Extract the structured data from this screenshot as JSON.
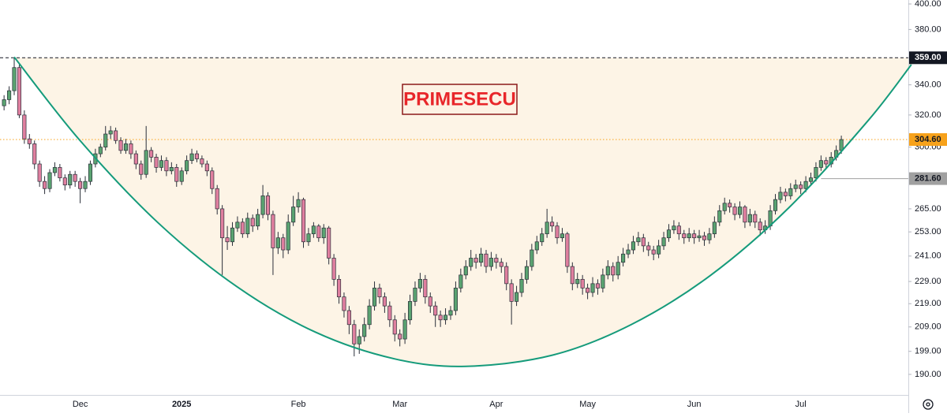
{
  "chart_data": {
    "type": "candlestick",
    "annotation": {
      "text": "PRIMESECU",
      "color": "#e8262a"
    },
    "log_scale": true,
    "ylim": [
      182.6,
      403.2
    ],
    "yticks": [
      {
        "value": 400,
        "label": "400.00"
      },
      {
        "value": 380,
        "label": "380.00"
      },
      {
        "value": 340,
        "label": "340.00"
      },
      {
        "value": 320,
        "label": "320.00"
      },
      {
        "value": 300,
        "label": "300.00"
      },
      {
        "value": 265,
        "label": "265.00"
      },
      {
        "value": 253,
        "label": "253.00"
      },
      {
        "value": 241,
        "label": "241.00"
      },
      {
        "value": 229,
        "label": "229.00"
      },
      {
        "value": 219,
        "label": "219.00"
      },
      {
        "value": 209,
        "label": "209.00"
      },
      {
        "value": 199,
        "label": "199.00"
      },
      {
        "value": 190,
        "label": "190.00"
      }
    ],
    "categories": [
      null,
      null,
      null,
      null,
      null,
      null,
      null,
      null,
      null,
      null,
      null,
      null,
      null,
      null,
      null,
      "Dec",
      null,
      null,
      null,
      null,
      null,
      null,
      null,
      null,
      null,
      null,
      null,
      null,
      null,
      null,
      null,
      null,
      null,
      null,
      null,
      "2025",
      null,
      null,
      null,
      null,
      null,
      null,
      null,
      null,
      null,
      null,
      null,
      null,
      null,
      null,
      null,
      null,
      null,
      null,
      null,
      null,
      null,
      null,
      "Feb",
      null,
      null,
      null,
      null,
      null,
      null,
      null,
      null,
      null,
      null,
      null,
      null,
      null,
      null,
      null,
      null,
      null,
      null,
      null,
      "Mar",
      null,
      null,
      null,
      null,
      null,
      null,
      null,
      null,
      null,
      null,
      null,
      null,
      null,
      null,
      null,
      null,
      null,
      null,
      "Apr",
      null,
      null,
      null,
      null,
      null,
      null,
      null,
      null,
      null,
      null,
      null,
      null,
      null,
      null,
      null,
      null,
      null,
      "May",
      null,
      null,
      null,
      null,
      null,
      null,
      null,
      null,
      null,
      null,
      null,
      null,
      null,
      null,
      null,
      null,
      null,
      null,
      null,
      null,
      "Jun",
      null,
      null,
      null,
      null,
      null,
      null,
      null,
      null,
      null,
      null,
      null,
      null,
      null,
      null,
      null,
      null,
      null,
      null,
      null,
      null,
      "Jul",
      null,
      null,
      null,
      null,
      null,
      null,
      null,
      null
    ],
    "open": [
      326,
      330,
      336,
      352,
      320,
      305,
      302,
      290,
      280,
      276,
      285,
      288,
      282,
      278,
      284,
      280,
      276,
      280,
      290,
      296,
      300,
      308,
      310,
      304,
      298,
      302,
      296,
      290,
      284,
      298,
      294,
      288,
      292,
      286,
      288,
      280,
      286,
      292,
      296,
      293,
      290,
      286,
      276,
      265,
      250,
      248,
      255,
      258,
      252,
      260,
      256,
      262,
      272,
      262,
      245,
      250,
      244,
      258,
      266,
      270,
      248,
      252,
      256,
      250,
      255,
      240,
      230,
      222,
      216,
      210,
      202,
      205,
      210,
      218,
      226,
      222,
      218,
      212,
      206,
      204,
      212,
      220,
      226,
      230,
      222,
      218,
      214,
      212,
      214,
      216,
      226,
      232,
      236,
      240,
      238,
      242,
      236,
      240,
      238,
      236,
      228,
      220,
      224,
      230,
      236,
      244,
      248,
      252,
      258,
      256,
      250,
      252,
      236,
      228,
      230,
      226,
      224,
      228,
      226,
      232,
      236,
      232,
      238,
      242,
      244,
      248,
      250,
      246,
      244,
      242,
      246,
      250,
      254,
      256,
      252,
      250,
      252,
      250,
      251,
      249,
      252,
      258,
      264,
      268,
      266,
      262,
      266,
      258,
      262,
      258,
      254,
      256,
      264,
      270,
      274,
      272,
      276,
      278,
      276,
      280,
      282,
      288,
      292,
      290,
      294,
      298
    ],
    "high": [
      333,
      339,
      359,
      354,
      323,
      308,
      304,
      292,
      283,
      287,
      291,
      290,
      284,
      286,
      286,
      282,
      283,
      292,
      299,
      302,
      313,
      313,
      312,
      306,
      305,
      304,
      298,
      292,
      313,
      300,
      296,
      295,
      294,
      291,
      290,
      288,
      295,
      299,
      298,
      295,
      292,
      288,
      278,
      267,
      256,
      258,
      261,
      260,
      263,
      262,
      265,
      278,
      274,
      264,
      253,
      252,
      262,
      272,
      274,
      271,
      255,
      258,
      257,
      257,
      256,
      242,
      232,
      224,
      218,
      212,
      208,
      213,
      221,
      229,
      228,
      224,
      220,
      214,
      208,
      215,
      223,
      229,
      233,
      232,
      224,
      220,
      216,
      217,
      218,
      229,
      235,
      239,
      244,
      242,
      245,
      244,
      243,
      242,
      240,
      238,
      230,
      227,
      233,
      239,
      247,
      251,
      255,
      265,
      261,
      258,
      255,
      253,
      238,
      233,
      232,
      228,
      231,
      230,
      235,
      239,
      238,
      241,
      245,
      247,
      251,
      253,
      252,
      248,
      246,
      249,
      253,
      257,
      259,
      258,
      254,
      255,
      254,
      254,
      253,
      255,
      261,
      267,
      271,
      270,
      268,
      269,
      267,
      265,
      264,
      260,
      259,
      267,
      273,
      277,
      276,
      279,
      281,
      280,
      283,
      285,
      291,
      295,
      294,
      297,
      301,
      307
    ],
    "low": [
      323,
      327,
      333,
      318,
      302,
      299,
      287,
      277,
      273,
      274,
      283,
      280,
      275,
      276,
      277,
      268,
      274,
      278,
      288,
      294,
      298,
      305,
      302,
      296,
      296,
      293,
      287,
      281,
      282,
      291,
      285,
      286,
      283,
      284,
      277,
      278,
      284,
      290,
      291,
      288,
      283,
      273,
      262,
      232,
      244,
      246,
      253,
      250,
      250,
      253,
      254,
      260,
      259,
      232,
      242,
      240,
      242,
      256,
      263,
      245,
      246,
      250,
      248,
      247,
      237,
      227,
      219,
      213,
      206,
      197,
      198,
      203,
      208,
      216,
      219,
      215,
      209,
      203,
      201,
      202,
      210,
      218,
      224,
      219,
      215,
      209,
      209,
      210,
      212,
      214,
      224,
      230,
      234,
      235,
      236,
      233,
      234,
      235,
      233,
      225,
      210,
      218,
      222,
      228,
      234,
      242,
      246,
      250,
      253,
      247,
      248,
      233,
      225,
      226,
      223,
      221,
      222,
      223,
      224,
      230,
      229,
      230,
      236,
      240,
      242,
      246,
      243,
      241,
      239,
      240,
      244,
      248,
      252,
      249,
      247,
      248,
      247,
      248,
      246,
      247,
      250,
      256,
      262,
      263,
      259,
      260,
      255,
      256,
      255,
      251,
      252,
      254,
      262,
      268,
      269,
      270,
      274,
      273,
      274,
      278,
      280,
      286,
      287,
      288,
      292,
      296
    ],
    "close": [
      330,
      336,
      352,
      320,
      305,
      302,
      290,
      280,
      276,
      285,
      288,
      282,
      278,
      284,
      280,
      276,
      280,
      290,
      296,
      300,
      308,
      310,
      304,
      298,
      302,
      296,
      290,
      284,
      298,
      294,
      288,
      292,
      286,
      288,
      280,
      286,
      292,
      296,
      293,
      290,
      286,
      276,
      265,
      250,
      248,
      255,
      258,
      252,
      260,
      256,
      262,
      272,
      262,
      245,
      250,
      244,
      258,
      266,
      270,
      248,
      252,
      256,
      250,
      255,
      240,
      230,
      222,
      216,
      210,
      202,
      205,
      210,
      218,
      226,
      222,
      218,
      212,
      206,
      204,
      212,
      220,
      226,
      230,
      222,
      218,
      214,
      212,
      214,
      216,
      226,
      232,
      236,
      240,
      238,
      242,
      236,
      240,
      238,
      236,
      228,
      220,
      224,
      230,
      236,
      244,
      248,
      252,
      258,
      256,
      250,
      252,
      236,
      228,
      230,
      226,
      224,
      228,
      226,
      232,
      236,
      232,
      238,
      242,
      244,
      248,
      250,
      246,
      244,
      242,
      246,
      250,
      254,
      256,
      252,
      250,
      252,
      250,
      251,
      249,
      252,
      258,
      264,
      268,
      266,
      262,
      266,
      258,
      262,
      258,
      254,
      256,
      264,
      270,
      274,
      272,
      276,
      278,
      276,
      280,
      282,
      288,
      292,
      290,
      294,
      298,
      304.6
    ],
    "up_color": "#5aa371",
    "down_color": "#df7f9f",
    "cup": {
      "x": [
        2.0,
        14.8,
        30.3,
        45.9,
        61.4,
        77.0,
        91.0,
        108.1,
        123.6,
        139.2,
        154.7,
        170.3,
        178.8
      ],
      "values": [
        359.5,
        304.6,
        257.8,
        226.6,
        206.8,
        196.0,
        193.1,
        197.5,
        210.0,
        231.8,
        265.7,
        316.5,
        354.1
      ],
      "color": "#159b7b",
      "fill": "#fdf4e6"
    },
    "price_lines": [
      {
        "value": 359,
        "label": "359.00",
        "color": "#131722",
        "text_color": "#ffffff",
        "style": "dashed"
      },
      {
        "value": 304.6,
        "label": "304.60",
        "color": "#f7a21b",
        "text_color": "#131722",
        "style": "dotted"
      },
      {
        "value": 281.6,
        "label": "281.60",
        "color": "#a0a0a0",
        "text_color": "#131722",
        "style": "solid",
        "x_start": 161
      }
    ]
  }
}
